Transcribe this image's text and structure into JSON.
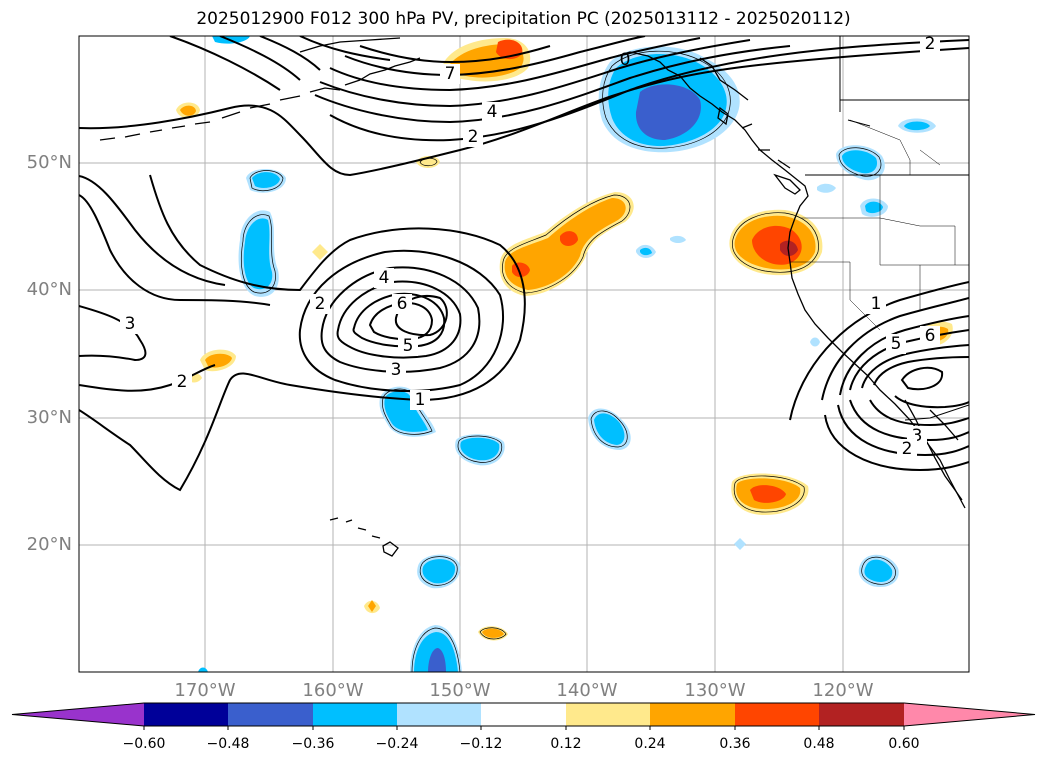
{
  "title": "2025012900 F012 300 hPa PV, precipitation PC (2025013112 - 2025020112)",
  "latitude_labels": [
    "50°N",
    "40°N",
    "30°N",
    "20°N"
  ],
  "longitude_labels": [
    "170°W",
    "160°W",
    "150°W",
    "140°W",
    "130°W",
    "120°W"
  ],
  "colorbar": {
    "tick_labels": [
      "−0.60",
      "−0.48",
      "−0.36",
      "−0.24",
      "−0.12",
      "0.12",
      "0.24",
      "0.36",
      "0.48",
      "0.60"
    ],
    "colors": [
      "#9933cc",
      "#000099",
      "#3a5fcd",
      "#00bfff",
      "#b0e2ff",
      "#ffffff",
      "#ffe98c",
      "#ffa500",
      "#ff4500",
      "#b22222",
      "#ff88aa"
    ]
  },
  "contour_labels": [
    {
      "text": "2",
      "role": "ne-corner"
    },
    {
      "text": "7",
      "role": "jet-north"
    },
    {
      "text": "4",
      "role": "jet-mid"
    },
    {
      "text": "2",
      "role": "jet-south"
    },
    {
      "text": "0",
      "role": "alaska-panhandle"
    },
    {
      "text": "4",
      "role": "low-ring-4"
    },
    {
      "text": "6",
      "role": "low-core"
    },
    {
      "text": "5",
      "role": "low-ring-5"
    },
    {
      "text": "3",
      "role": "low-ring-3"
    },
    {
      "text": "1",
      "role": "low-ring-1"
    },
    {
      "text": "2",
      "role": "low-ring-2"
    },
    {
      "text": "3",
      "role": "west-3"
    },
    {
      "text": "2",
      "role": "west-2"
    },
    {
      "text": "1",
      "role": "ca-low-1"
    },
    {
      "text": "5",
      "role": "ca-low-5"
    },
    {
      "text": "6",
      "role": "ca-low-6"
    },
    {
      "text": "3",
      "role": "ca-low-3"
    },
    {
      "text": "2",
      "role": "ca-low-2"
    }
  ]
}
